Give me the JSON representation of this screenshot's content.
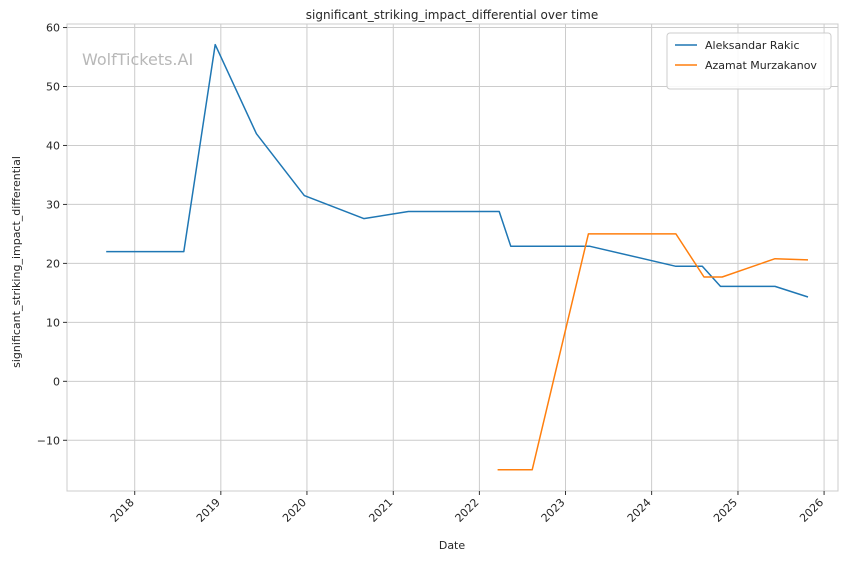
{
  "chart_data": {
    "type": "line",
    "title": "significant_striking_impact_differential over time",
    "xlabel": "Date",
    "ylabel": "significant_striking_impact_differential",
    "watermark": "WolfTickets.AI",
    "x_ticks": [
      "2018",
      "2019",
      "2020",
      "2021",
      "2022",
      "2023",
      "2024",
      "2025",
      "2026"
    ],
    "y_ticks": [
      "60",
      "50",
      "40",
      "30",
      "20",
      "10",
      "0",
      "−10"
    ],
    "xlim": [
      "2017-03-20",
      "2026-03-01"
    ],
    "ylim": [
      -18.6,
      60.6
    ],
    "grid": true,
    "legend_position": "top-right",
    "series": [
      {
        "name": "Aleksandar Rakic",
        "color": "#1f77b4",
        "points": [
          {
            "x": "2017-09-02",
            "y": 22.0
          },
          {
            "x": "2018-07-28",
            "y": 22.0
          },
          {
            "x": "2018-12-08",
            "y": 57.1
          },
          {
            "x": "2019-06-01",
            "y": 42.0
          },
          {
            "x": "2019-12-21",
            "y": 31.5
          },
          {
            "x": "2020-08-29",
            "y": 27.6
          },
          {
            "x": "2021-03-06",
            "y": 28.8
          },
          {
            "x": "2022-03-26",
            "y": 28.8
          },
          {
            "x": "2022-05-14",
            "y": 22.9
          },
          {
            "x": "2023-04-15",
            "y": 22.9
          },
          {
            "x": "2024-04-13",
            "y": 19.5
          },
          {
            "x": "2024-08-03",
            "y": 19.5
          },
          {
            "x": "2024-10-19",
            "y": 16.1
          },
          {
            "x": "2025-06-07",
            "y": 16.1
          },
          {
            "x": "2025-10-25",
            "y": 14.3
          }
        ]
      },
      {
        "name": "Azamat Murzakanov",
        "color": "#ff7f0e",
        "points": [
          {
            "x": "2022-03-19",
            "y": -15.0
          },
          {
            "x": "2022-08-13",
            "y": -15.0
          },
          {
            "x": "2023-04-08",
            "y": 25.0
          },
          {
            "x": "2024-04-13",
            "y": 25.0
          },
          {
            "x": "2024-08-10",
            "y": 17.7
          },
          {
            "x": "2024-10-26",
            "y": 17.7
          },
          {
            "x": "2025-06-07",
            "y": 20.8
          },
          {
            "x": "2025-10-25",
            "y": 20.6
          }
        ]
      }
    ]
  }
}
